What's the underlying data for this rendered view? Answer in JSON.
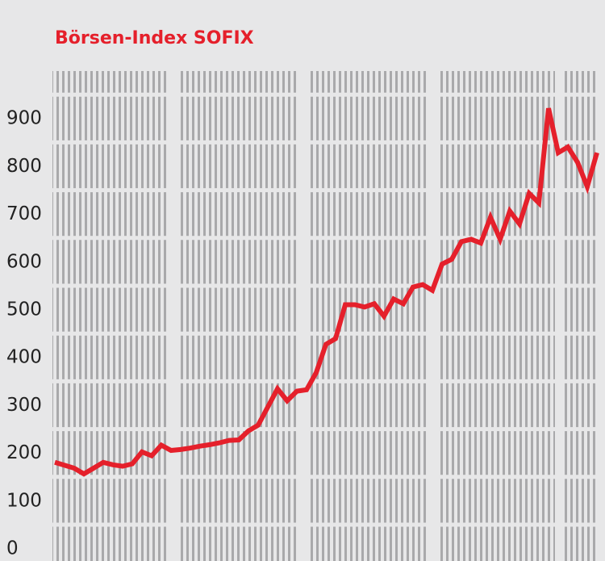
{
  "chart_data": {
    "type": "line",
    "title": "Börsen-Index SOFIX",
    "values": [
      181,
      175,
      169,
      157,
      169,
      181,
      176,
      173,
      178,
      203,
      195,
      217,
      206,
      208,
      211,
      215,
      218,
      222,
      227,
      228,
      247,
      259,
      297,
      335,
      310,
      330,
      333,
      369,
      428,
      440,
      511,
      511,
      506,
      513,
      487,
      523,
      513,
      548,
      553,
      541,
      596,
      606,
      643,
      648,
      640,
      694,
      648,
      707,
      680,
      744,
      724,
      922,
      829,
      841,
      809,
      758,
      829
    ],
    "color": "#e5202b",
    "ylim": [
      0,
      1000
    ],
    "yticks": [
      0,
      100,
      200,
      300,
      400,
      500,
      600,
      700,
      800,
      900
    ],
    "grid": true
  }
}
